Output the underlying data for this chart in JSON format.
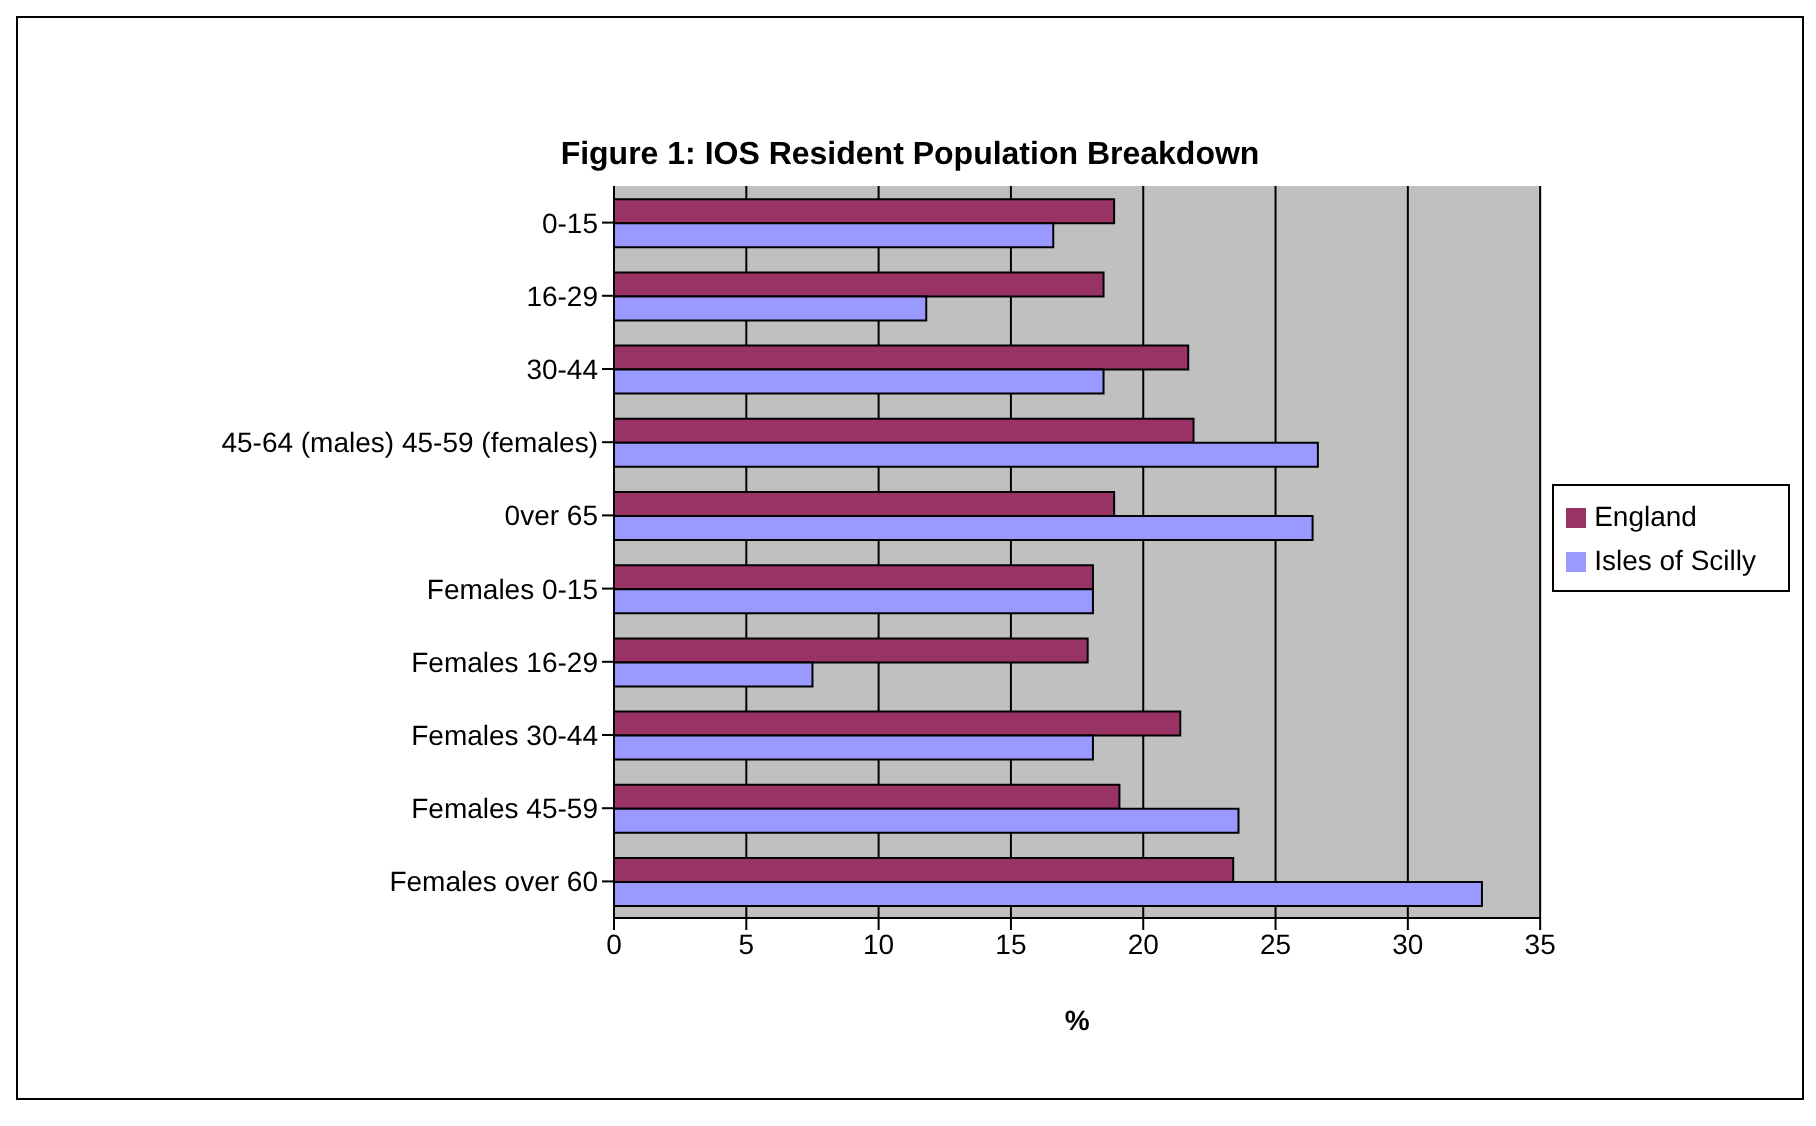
{
  "chart_data": {
    "type": "bar",
    "orientation": "horizontal",
    "title": "Figure 1: IOS Resident Population Breakdown",
    "xlabel": "%",
    "categories": [
      "0-15",
      "16-29",
      "30-44",
      "45-64 (males) 45-59 (females)",
      "0ver 65",
      "Females 0-15",
      "Females 16-29",
      "Females 30-44",
      "Females 45-59",
      "Females over 60"
    ],
    "series": [
      {
        "name": "England",
        "color": "#993366",
        "values": [
          18.9,
          18.5,
          21.7,
          21.9,
          18.9,
          18.1,
          17.9,
          21.4,
          19.1,
          23.4
        ]
      },
      {
        "name": "Isles of Scilly",
        "color": "#9999ff",
        "values": [
          16.6,
          11.8,
          18.5,
          26.6,
          26.4,
          18.1,
          7.5,
          18.1,
          23.6,
          32.8
        ]
      }
    ],
    "xlim": [
      0,
      35
    ],
    "xticks": [
      0,
      5,
      10,
      15,
      20,
      25,
      30,
      35
    ],
    "grid": "x",
    "legend": "right"
  }
}
